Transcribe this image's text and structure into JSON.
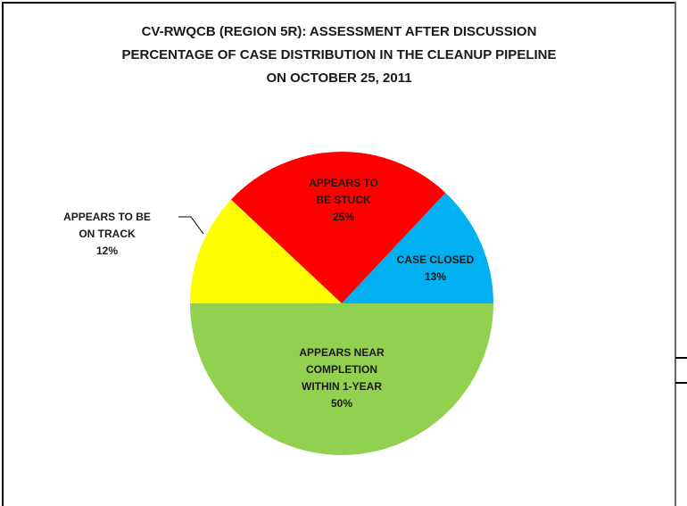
{
  "chart_data": {
    "type": "pie",
    "title": [
      "CV-RWQCB (REGION 5R): ASSESSMENT AFTER DISCUSSION",
      "PERCENTAGE OF CASE DISTRIBUTION IN THE CLEANUP PIPELINE",
      "ON OCTOBER 25, 2011"
    ],
    "categories": [
      "APPEARS NEAR COMPLETION WITHIN 1-YEAR",
      "APPEARS TO BE ON TRACK",
      "APPEARS TO BE STUCK",
      "CASE CLOSED"
    ],
    "values": [
      50,
      12,
      25,
      13
    ],
    "value_labels": [
      "50%",
      "12%",
      "25%",
      "13%"
    ],
    "colors": [
      "#92d050",
      "#ffff00",
      "#ff0000",
      "#00b0f0"
    ]
  }
}
